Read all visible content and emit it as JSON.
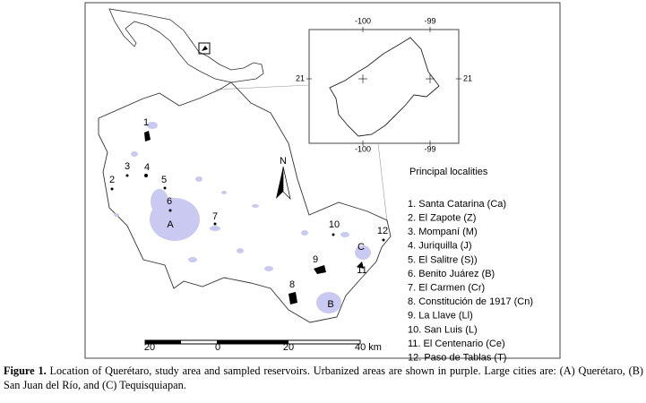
{
  "map": {
    "inset_coords": {
      "top": [
        "-100",
        "-99"
      ],
      "left": "21",
      "right": "21",
      "bottom": [
        "-100",
        "-99"
      ]
    },
    "north": "N",
    "point_labels": [
      "1",
      "2",
      "3",
      "4",
      "5",
      "6",
      "7",
      "8",
      "9",
      "10",
      "11",
      "12"
    ],
    "city_labels": [
      "A",
      "B",
      "C"
    ],
    "legend": {
      "title": "Principal localities",
      "items": [
        "1. Santa Catarina (Ca)",
        "2. El Zapote (Z)",
        "3. Mompaní (M)",
        "4. Juriquilla (J)",
        "5. El Salitre (S))",
        "6. Benito Juárez (B)",
        "7. El Carmen (Cr)",
        "8. Constitución de 1917 (Cn)",
        "9. La Llave (Ll)",
        "10. San Luis (L)",
        "11. El Centenario (Ce)",
        "12. Paso de Tablas (T)"
      ]
    },
    "scale": {
      "labels": [
        "20",
        "0",
        "20",
        "40 km"
      ]
    }
  },
  "caption": {
    "label": "Figure 1.",
    "text": "Location of Querétaro, study area and sampled reservoirs. Urbanized areas are shown in purple. Large cities are: (A) Querétaro, (B) San Juan del Río, and (C) Tequisquiapan."
  }
}
